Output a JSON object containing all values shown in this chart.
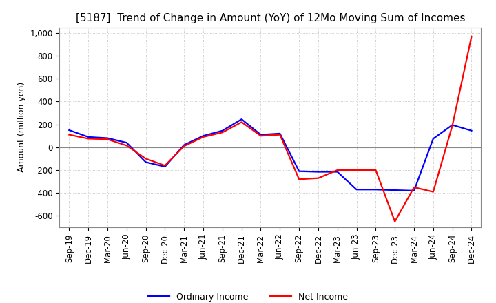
{
  "title": "[5187]  Trend of Change in Amount (YoY) of 12Mo Moving Sum of Incomes",
  "ylabel": "Amount (million yen)",
  "ylim": [
    -700,
    1050
  ],
  "yticks": [
    -600,
    -400,
    -200,
    0,
    200,
    400,
    600,
    800,
    1000
  ],
  "x_labels": [
    "Sep-19",
    "Dec-19",
    "Mar-20",
    "Jun-20",
    "Sep-20",
    "Dec-20",
    "Mar-21",
    "Jun-21",
    "Sep-21",
    "Dec-21",
    "Mar-22",
    "Jun-22",
    "Sep-22",
    "Dec-22",
    "Mar-23",
    "Jun-23",
    "Sep-23",
    "Dec-23",
    "Mar-24",
    "Jun-24",
    "Sep-24",
    "Dec-24"
  ],
  "ordinary_income": [
    150,
    90,
    80,
    40,
    -130,
    -170,
    20,
    100,
    145,
    245,
    110,
    120,
    -210,
    -215,
    -215,
    -370,
    -370,
    -375,
    -380,
    75,
    195,
    145
  ],
  "net_income": [
    110,
    75,
    70,
    15,
    -100,
    -160,
    10,
    90,
    130,
    220,
    100,
    110,
    -280,
    -270,
    -200,
    -200,
    -200,
    -650,
    -350,
    -390,
    190,
    970
  ],
  "ordinary_color": "#0000ff",
  "net_color": "#ff0000",
  "grid_color": "#bbbbbb",
  "background_color": "#ffffff",
  "legend_labels": [
    "Ordinary Income",
    "Net Income"
  ],
  "title_fontsize": 11,
  "axis_fontsize": 9,
  "tick_fontsize": 8.5
}
